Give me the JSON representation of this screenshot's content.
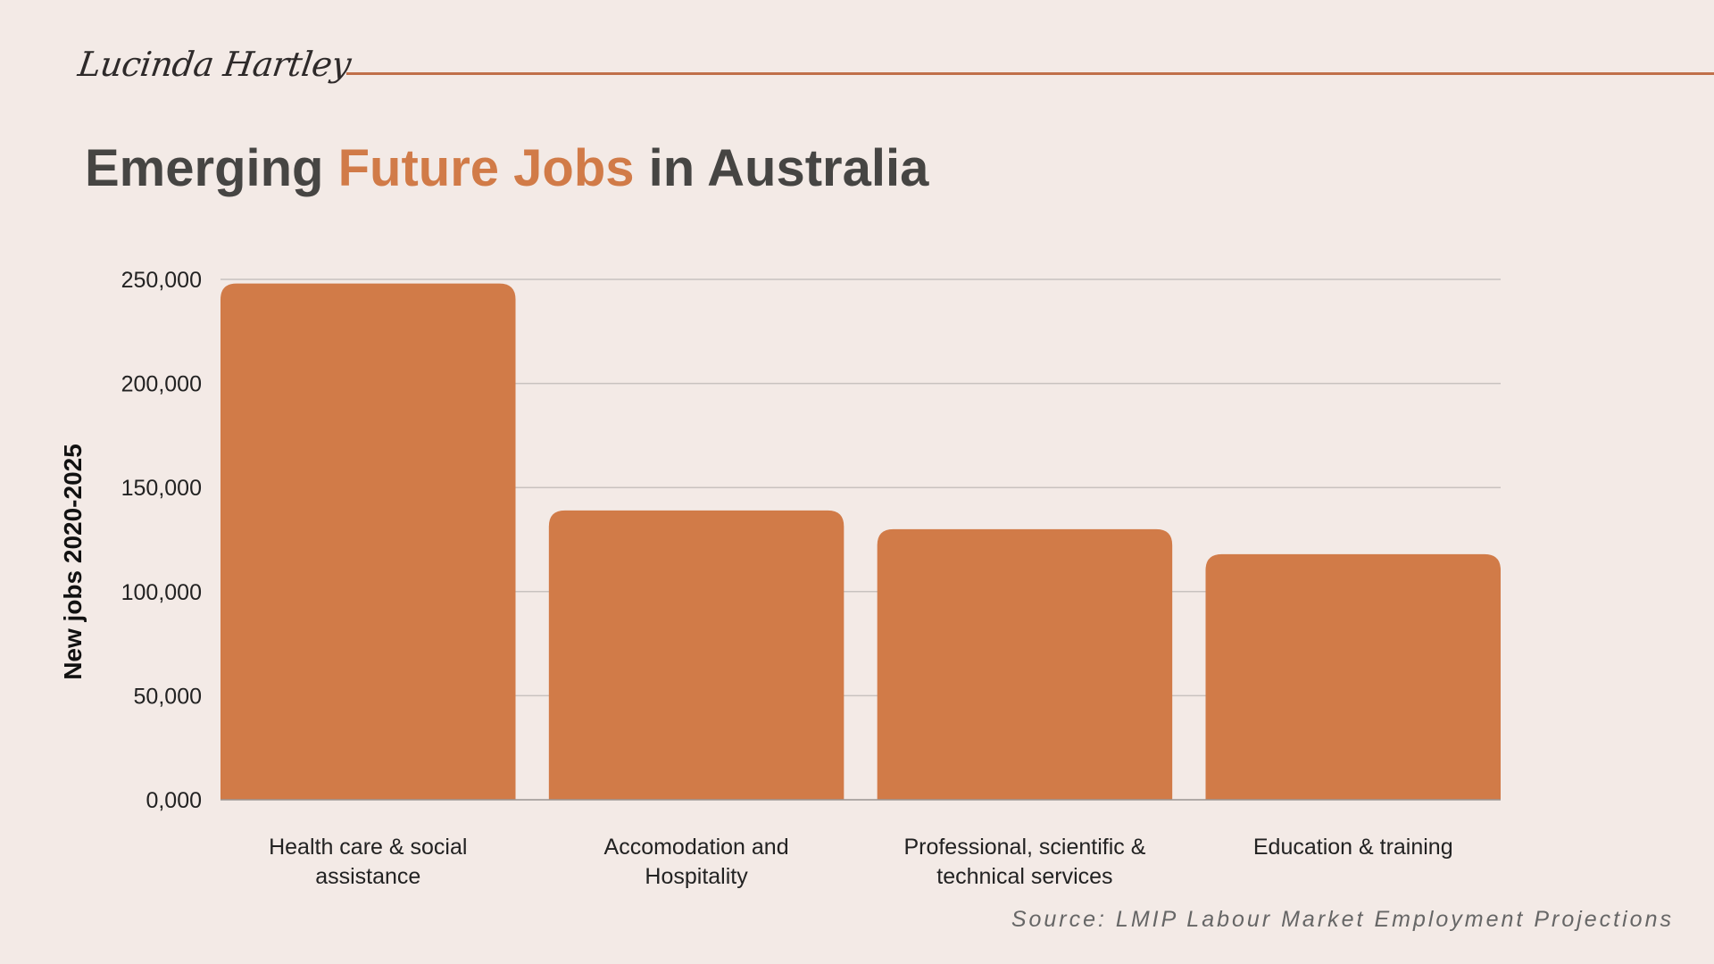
{
  "header": {
    "signature": "Lucinda Hartley",
    "title_part1": "Emerging ",
    "title_accent": "Future Jobs",
    "title_part2": " in Australia"
  },
  "colors": {
    "background": "#f3eae6",
    "bar": "#d17b48",
    "title": "#464543",
    "accent": "#d17b48",
    "rule": "#c0704a",
    "grid": "#c8c2bf"
  },
  "chart_data": {
    "type": "bar",
    "categories": [
      [
        "Health care & social",
        "assistance"
      ],
      [
        "Accomodation and",
        "Hospitality"
      ],
      [
        "Professional, scientific &",
        "technical services"
      ],
      [
        "Education & training"
      ]
    ],
    "values": [
      248000,
      139000,
      130000,
      118000
    ],
    "ylabel": "New jobs 2020-2025",
    "ylim": [
      0,
      250000
    ],
    "yticks": [
      0,
      50000,
      100000,
      150000,
      200000,
      250000
    ],
    "ytick_labels": [
      "0,000",
      "50,000",
      "100,000",
      "150,000",
      "200,000",
      "250,000"
    ],
    "grid": true
  },
  "source": "Source:  LMIP Labour Market Employment Projections"
}
